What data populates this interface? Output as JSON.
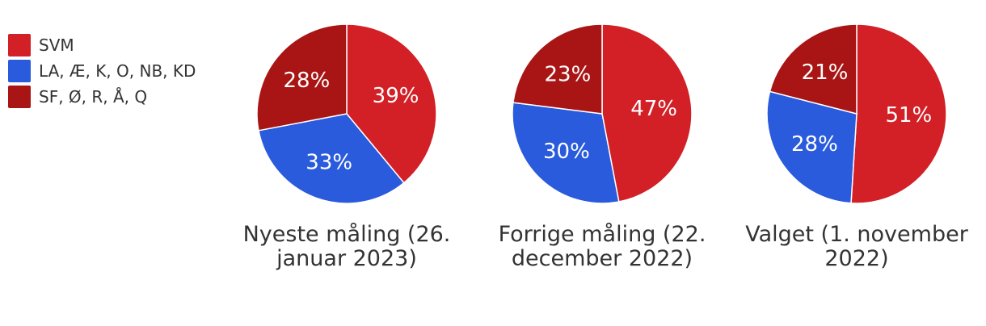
{
  "legend": [
    {
      "label": "SVM",
      "color": "#d31f26"
    },
    {
      "label": "LA, Æ, K, O, NB, KD",
      "color": "#2a5bdc"
    },
    {
      "label": "SF, Ø, R, Å, Q",
      "color": "#a91515"
    }
  ],
  "chart_data": [
    {
      "type": "pie",
      "title": "Nyeste måling (26. januar 2023)",
      "categories": [
        "SVM",
        "LA, Æ, K, O, NB, KD",
        "SF, Ø, R, Å, Q"
      ],
      "values": [
        39,
        33,
        28
      ],
      "labels": [
        "39%",
        "33%",
        "28%"
      ],
      "colors": [
        "#d31f26",
        "#2a5bdc",
        "#a91515"
      ]
    },
    {
      "type": "pie",
      "title": "Forrige måling (22. december 2022)",
      "categories": [
        "SVM",
        "LA, Æ, K, O, NB, KD",
        "SF, Ø, R, Å, Q"
      ],
      "values": [
        47,
        30,
        23
      ],
      "labels": [
        "47%",
        "30%",
        "23%"
      ],
      "colors": [
        "#d31f26",
        "#2a5bdc",
        "#a91515"
      ]
    },
    {
      "type": "pie",
      "title": "Valget (1. november 2022)",
      "categories": [
        "SVM",
        "LA, Æ, K, O, NB, KD",
        "SF, Ø, R, Å, Q"
      ],
      "values": [
        51,
        28,
        21
      ],
      "labels": [
        "51%",
        "28%",
        "21%"
      ],
      "colors": [
        "#d31f26",
        "#2a5bdc",
        "#a91515"
      ]
    }
  ]
}
